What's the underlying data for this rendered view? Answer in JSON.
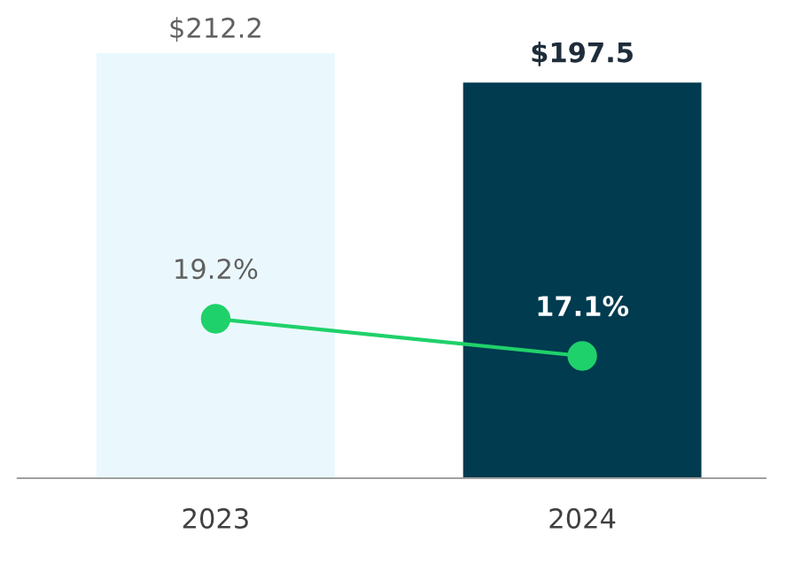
{
  "chart_data": {
    "type": "bar",
    "categories": [
      "2023",
      "2024"
    ],
    "series": [
      {
        "colors": [
          "#eaf8fd",
          "#003b4f"
        ],
        "values": [
          212.2,
          197.5
        ],
        "value_labels": [
          "$212.2",
          "$197.5"
        ]
      },
      {
        "type": "line",
        "axis": "y2",
        "color": "#1fd16a",
        "marker": "circle",
        "values": [
          19.2,
          17.1
        ],
        "value_labels": [
          "19.2%",
          "17.1%"
        ]
      }
    ],
    "tick_labels": "x",
    "grid": false,
    "legend": false
  }
}
